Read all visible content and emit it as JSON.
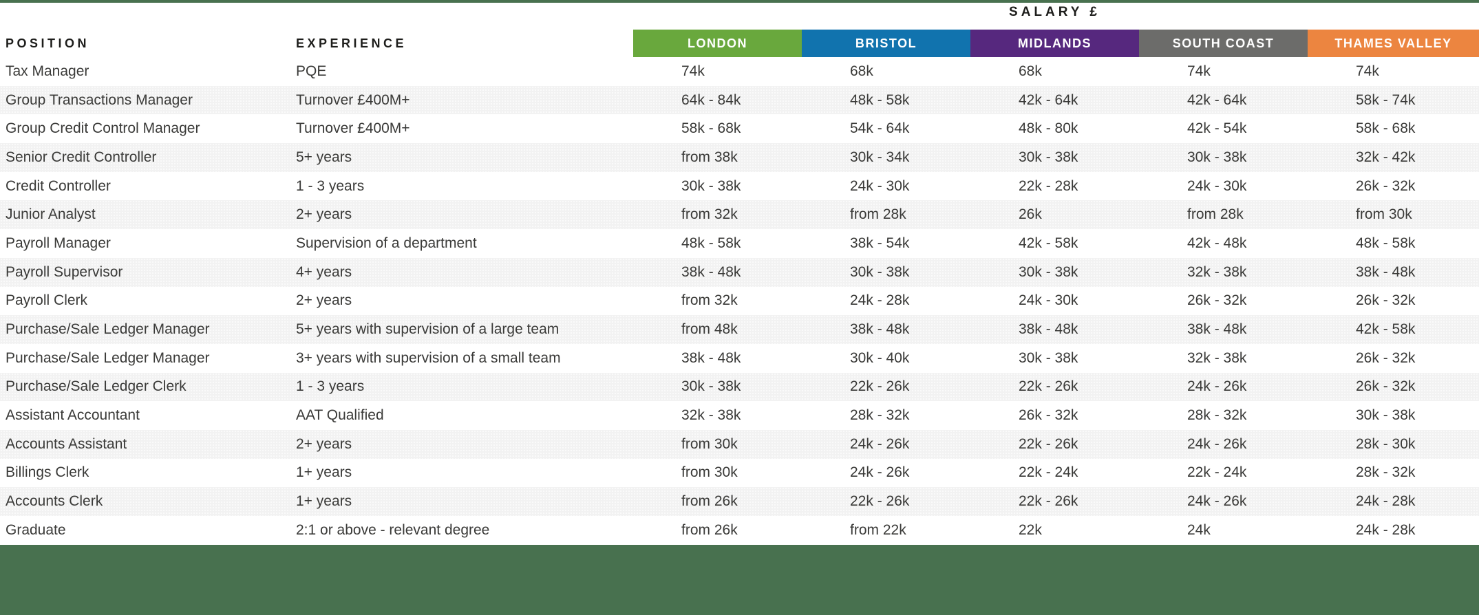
{
  "header": {
    "salary_title": "SALARY £",
    "position_label": "POSITION",
    "experience_label": "EXPERIENCE",
    "regions": [
      {
        "label": "LONDON",
        "color": "#69a83d"
      },
      {
        "label": "BRISTOL",
        "color": "#1173ae"
      },
      {
        "label": "MIDLANDS",
        "color": "#56287e"
      },
      {
        "label": "SOUTH COAST",
        "color": "#6c6c6a"
      },
      {
        "label": "THAMES VALLEY",
        "color": "#ec8540"
      }
    ]
  },
  "theme": {
    "footer_green": "#48714f",
    "top_line_green": "#48714f",
    "stripe_color": "#f2f2f2",
    "text_color": "#3a3a38",
    "heading_color": "#1d1d1b"
  },
  "table": {
    "rows": [
      {
        "position": "Tax Manager",
        "experience": "PQE",
        "salaries": [
          "74k",
          "68k",
          "68k",
          "74k",
          "74k"
        ]
      },
      {
        "position": "Group Transactions Manager",
        "experience": "Turnover £400M+",
        "salaries": [
          "64k - 84k",
          "48k - 58k",
          "42k - 64k",
          "42k - 64k",
          "58k - 74k"
        ]
      },
      {
        "position": "Group Credit Control Manager",
        "experience": "Turnover £400M+",
        "salaries": [
          "58k - 68k",
          "54k - 64k",
          "48k - 80k",
          "42k - 54k",
          "58k - 68k"
        ]
      },
      {
        "position": "Senior Credit Controller",
        "experience": "5+ years",
        "salaries": [
          "from 38k",
          "30k - 34k",
          "30k - 38k",
          "30k - 38k",
          "32k - 42k"
        ]
      },
      {
        "position": "Credit Controller",
        "experience": "1 - 3 years",
        "salaries": [
          "30k - 38k",
          "24k - 30k",
          "22k - 28k",
          "24k - 30k",
          "26k - 32k"
        ]
      },
      {
        "position": "Junior Analyst",
        "experience": "2+ years",
        "salaries": [
          "from 32k",
          "from 28k",
          "26k",
          "from 28k",
          "from 30k"
        ]
      },
      {
        "position": "Payroll Manager",
        "experience": "Supervision of a department",
        "salaries": [
          "48k - 58k",
          "38k - 54k",
          "42k - 58k",
          "42k - 48k",
          "48k - 58k"
        ]
      },
      {
        "position": "Payroll Supervisor",
        "experience": "4+ years",
        "salaries": [
          "38k - 48k",
          "30k - 38k",
          "30k - 38k",
          "32k - 38k",
          "38k - 48k"
        ]
      },
      {
        "position": "Payroll Clerk",
        "experience": "2+ years",
        "salaries": [
          "from 32k",
          "24k - 28k",
          "24k - 30k",
          "26k - 32k",
          "26k - 32k"
        ]
      },
      {
        "position": "Purchase/Sale Ledger Manager",
        "experience": "5+ years with supervision of a large team",
        "salaries": [
          "from 48k",
          "38k - 48k",
          "38k - 48k",
          "38k - 48k",
          "42k - 58k"
        ]
      },
      {
        "position": "Purchase/Sale Ledger Manager",
        "experience": "3+ years with supervision of a small team",
        "salaries": [
          "38k - 48k",
          "30k - 40k",
          "30k - 38k",
          "32k - 38k",
          "26k - 32k"
        ]
      },
      {
        "position": "Purchase/Sale Ledger Clerk",
        "experience": "1 - 3 years",
        "salaries": [
          "30k - 38k",
          "22k - 26k",
          "22k - 26k",
          "24k - 26k",
          "26k - 32k"
        ]
      },
      {
        "position": "Assistant Accountant",
        "experience": "AAT Qualified",
        "salaries": [
          "32k - 38k",
          "28k - 32k",
          "26k - 32k",
          "28k - 32k",
          "30k - 38k"
        ]
      },
      {
        "position": "Accounts Assistant",
        "experience": "2+ years",
        "salaries": [
          "from 30k",
          "24k - 26k",
          "22k - 26k",
          "24k - 26k",
          "28k - 30k"
        ]
      },
      {
        "position": "Billings Clerk",
        "experience": "1+ years",
        "salaries": [
          "from 30k",
          "24k - 26k",
          "22k - 24k",
          "22k - 24k",
          "28k - 32k"
        ]
      },
      {
        "position": "Accounts Clerk",
        "experience": "1+ years",
        "salaries": [
          "from 26k",
          "22k - 26k",
          "22k - 26k",
          "24k - 26k",
          "24k - 28k"
        ]
      },
      {
        "position": "Graduate",
        "experience": "2:1 or above - relevant degree",
        "salaries": [
          "from 26k",
          "from 22k",
          "22k",
          "24k",
          "24k - 28k"
        ]
      }
    ]
  }
}
